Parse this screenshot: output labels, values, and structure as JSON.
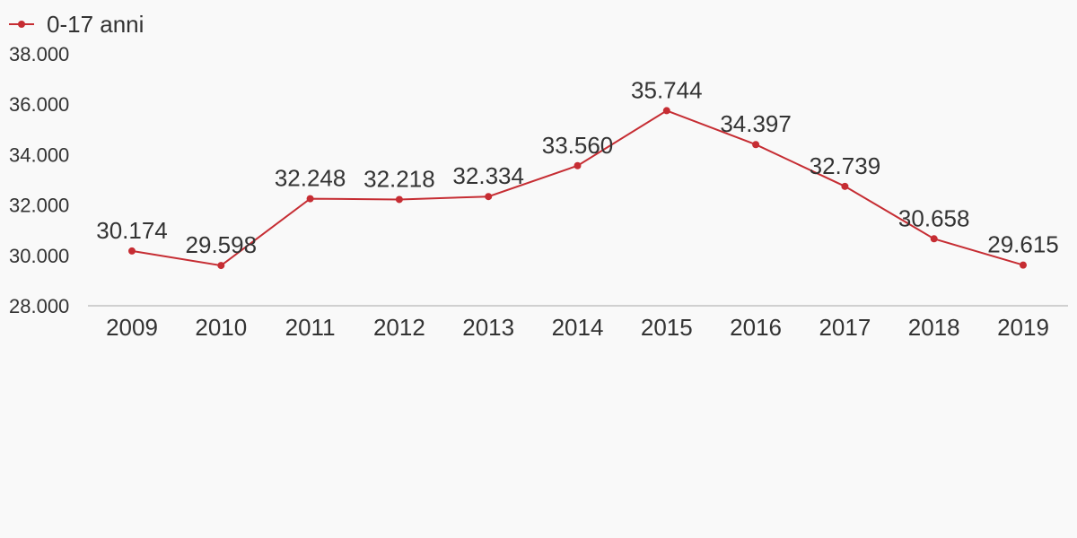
{
  "chart_data": {
    "type": "line",
    "title": "",
    "xlabel": "",
    "ylabel": "",
    "categories": [
      "2009",
      "2010",
      "2011",
      "2012",
      "2013",
      "2014",
      "2015",
      "2016",
      "2017",
      "2018",
      "2019"
    ],
    "series": [
      {
        "name": "0-17 anni",
        "color": "#c62d33",
        "values": [
          30174,
          29598,
          32248,
          32218,
          32334,
          33560,
          35744,
          34397,
          32739,
          30658,
          29615
        ],
        "labels": [
          "30.174",
          "29.598",
          "32.248",
          "32.218",
          "32.334",
          "33.560",
          "35.744",
          "34.397",
          "32.739",
          "30.658",
          "29.615"
        ]
      }
    ],
    "ylim": [
      28000,
      38000
    ],
    "y_ticks": [
      28000,
      30000,
      32000,
      34000,
      36000,
      38000
    ],
    "y_tick_labels": [
      "28.000",
      "30.000",
      "32.000",
      "34.000",
      "36.000",
      "38.000"
    ],
    "grid": false,
    "legend_position": "top-left"
  },
  "legend": {
    "label": "0-17 anni"
  }
}
